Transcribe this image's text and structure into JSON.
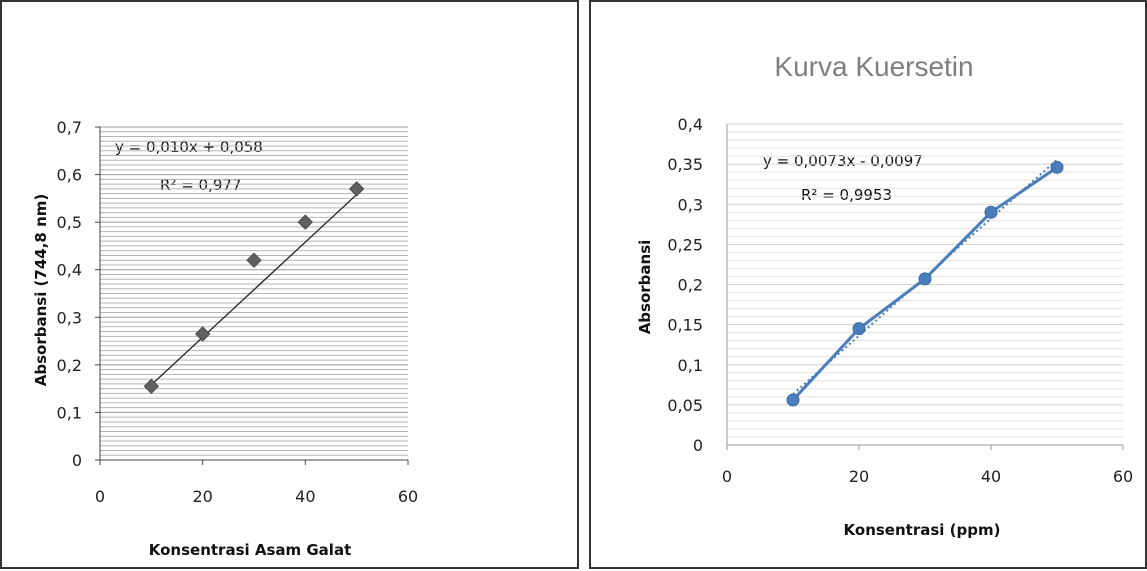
{
  "chart_data": [
    {
      "type": "scatter",
      "title": "",
      "xlabel": "Konsentrasi Asam Galat",
      "ylabel": "Absorbansi (744,8 nm)",
      "xlim": [
        0,
        60
      ],
      "ylim": [
        0,
        0.7
      ],
      "xticks": [
        "0",
        "20",
        "40",
        "60"
      ],
      "yticks": [
        "0",
        "0,1",
        "0,2",
        "0,3",
        "0,4",
        "0,5",
        "0,6",
        "0,7"
      ],
      "grid": true,
      "series": [
        {
          "x": [
            10,
            20,
            30,
            40,
            50
          ],
          "values": [
            0.155,
            0.265,
            0.42,
            0.5,
            0.57
          ],
          "marker": "diamond",
          "color": "#606060"
        }
      ],
      "trendline": {
        "slope": 0.01,
        "intercept": 0.058,
        "color": "#222222"
      },
      "annotations": [
        "y = 0,010x + 0,058",
        "R² = 0,977"
      ]
    },
    {
      "type": "line",
      "title": "Kurva Kuersetin",
      "xlabel": "Konsentrasi (ppm)",
      "ylabel": "Absorbansi",
      "xlim": [
        0,
        60
      ],
      "ylim": [
        0,
        0.4
      ],
      "xticks": [
        "0",
        "20",
        "40",
        "60"
      ],
      "yticks": [
        "0",
        "0,05",
        "0,1",
        "0,15",
        "0,2",
        "0,25",
        "0,3",
        "0,35",
        "0,4"
      ],
      "grid": true,
      "series": [
        {
          "x": [
            10,
            20,
            30,
            40,
            50
          ],
          "values": [
            0.056,
            0.145,
            0.207,
            0.29,
            0.346
          ],
          "marker": "circle",
          "color": "#4a7ebb"
        }
      ],
      "trendline": {
        "slope": 0.0073,
        "intercept": -0.0097,
        "color": "#4a7ebb",
        "style": "dotted"
      },
      "annotations": [
        "y = 0,0073x - 0,0097",
        "R² = 0,9953"
      ]
    }
  ]
}
